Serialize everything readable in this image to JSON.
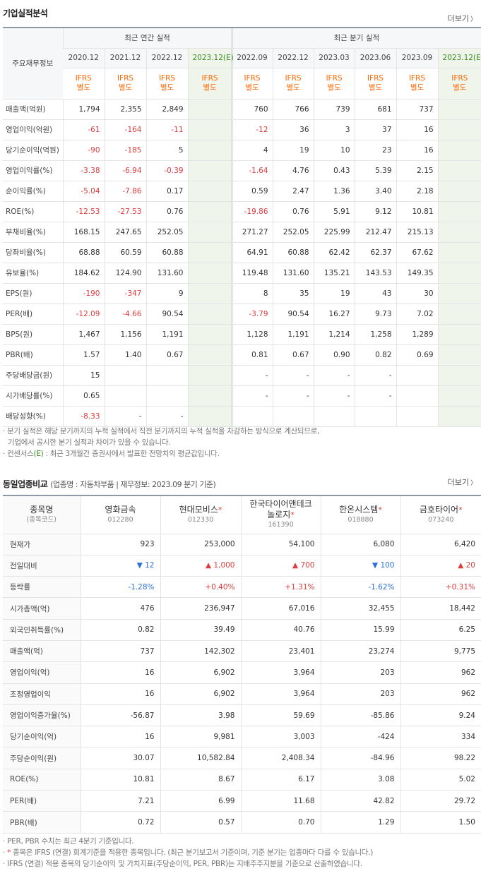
{
  "section1": {
    "title": "기업실적분석",
    "more_label": "더보기",
    "header": {
      "row_label": "주요재무정보",
      "annual_group": "최근 연간 실적",
      "quarter_group": "최근 분기 실적",
      "annual_periods": [
        "2020.12",
        "2021.12",
        "2022.12",
        "2023.12(E)"
      ],
      "quarter_periods": [
        "2022.09",
        "2022.12",
        "2023.03",
        "2023.06",
        "2023.09",
        "2023.12(E)"
      ],
      "ifrs_line1": "IFRS",
      "ifrs_line2": "별도"
    },
    "rows": [
      {
        "label": "매출액(억원)",
        "annual": [
          "1,794",
          "2,355",
          "2,849",
          ""
        ],
        "quarter": [
          "760",
          "766",
          "739",
          "681",
          "737",
          ""
        ]
      },
      {
        "label": "영업이익(억원)",
        "annual": [
          "-61",
          "-164",
          "-11",
          ""
        ],
        "quarter": [
          "-12",
          "36",
          "3",
          "37",
          "16",
          ""
        ]
      },
      {
        "label": "당기순이익(억원)",
        "annual": [
          "-90",
          "-185",
          "5",
          ""
        ],
        "quarter": [
          "4",
          "19",
          "10",
          "23",
          "16",
          ""
        ]
      },
      {
        "label": "영업이익률(%)",
        "annual": [
          "-3.38",
          "-6.94",
          "-0.39",
          ""
        ],
        "quarter": [
          "-1.64",
          "4.76",
          "0.43",
          "5.39",
          "2.15",
          ""
        ]
      },
      {
        "label": "순이익률(%)",
        "annual": [
          "-5.04",
          "-7.86",
          "0.17",
          ""
        ],
        "quarter": [
          "0.59",
          "2.47",
          "1.36",
          "3.40",
          "2.18",
          ""
        ]
      },
      {
        "label": "ROE(%)",
        "annual": [
          "-12.53",
          "-27.53",
          "0.76",
          ""
        ],
        "quarter": [
          "-19.86",
          "0.76",
          "5.91",
          "9.12",
          "10.81",
          ""
        ]
      },
      {
        "label": "부채비율(%)",
        "annual": [
          "168.15",
          "247.65",
          "252.05",
          ""
        ],
        "quarter": [
          "271.27",
          "252.05",
          "225.99",
          "212.47",
          "215.13",
          ""
        ]
      },
      {
        "label": "당좌비율(%)",
        "annual": [
          "68.88",
          "60.59",
          "60.88",
          ""
        ],
        "quarter": [
          "64.91",
          "60.88",
          "62.42",
          "62.37",
          "67.62",
          ""
        ]
      },
      {
        "label": "유보율(%)",
        "annual": [
          "184.62",
          "124.90",
          "131.60",
          ""
        ],
        "quarter": [
          "119.48",
          "131.60",
          "135.21",
          "143.53",
          "149.35",
          ""
        ]
      },
      {
        "label": "EPS(원)",
        "annual": [
          "-190",
          "-347",
          "9",
          ""
        ],
        "quarter": [
          "8",
          "35",
          "19",
          "43",
          "30",
          ""
        ]
      },
      {
        "label": "PER(배)",
        "annual": [
          "-12.09",
          "-4.66",
          "90.54",
          ""
        ],
        "quarter": [
          "-3.79",
          "90.54",
          "16.27",
          "9.73",
          "7.02",
          ""
        ]
      },
      {
        "label": "BPS(원)",
        "annual": [
          "1,467",
          "1,156",
          "1,191",
          ""
        ],
        "quarter": [
          "1,128",
          "1,191",
          "1,214",
          "1,258",
          "1,289",
          ""
        ]
      },
      {
        "label": "PBR(배)",
        "annual": [
          "1.57",
          "1.40",
          "0.67",
          ""
        ],
        "quarter": [
          "0.81",
          "0.67",
          "0.90",
          "0.82",
          "0.69",
          ""
        ]
      },
      {
        "label": "주당배당금(원)",
        "annual": [
          "15",
          "",
          "",
          ""
        ],
        "quarter": [
          "-",
          "-",
          "-",
          "-",
          "",
          ""
        ]
      },
      {
        "label": "시가배당률(%)",
        "annual": [
          "0.65",
          "",
          "",
          ""
        ],
        "quarter": [
          "-",
          "-",
          "-",
          "-",
          "",
          ""
        ]
      },
      {
        "label": "배당성향(%)",
        "annual": [
          "-8.33",
          "-",
          "-",
          ""
        ],
        "quarter": [
          "",
          "",
          "",
          "",
          "",
          ""
        ]
      }
    ],
    "notes": [
      "분기 실적은 해당 분기까지의 누적 실적에서 직전 분기까지의 누적 실적을 차감하는 방식으로 계산되므로,",
      "기업에서 공시한 분기 실적과 차이가 있을 수 있습니다.",
      "컨센서스(E) : 최근 3개월간 증권사에서 발표한 전망치의 평균값입니다."
    ]
  },
  "section2": {
    "title": "동일업종비교",
    "condition": "(업종명 : 자동차부품 | 재무정보: 2023.09 분기 기준)",
    "more_label": "더보기",
    "header_label_line1": "종목명",
    "header_label_line2": "(종목코드)",
    "companies": [
      {
        "name": "영화금속",
        "code": "012280",
        "star": false
      },
      {
        "name": "현대모비스",
        "code": "012330",
        "star": true
      },
      {
        "name": "한국타이어앤테크놀로지",
        "code": "161390",
        "star": true
      },
      {
        "name": "한온시스템",
        "code": "018880",
        "star": true
      },
      {
        "name": "금호타이어",
        "code": "073240",
        "star": true
      }
    ],
    "star_symbol": "*",
    "rows": [
      {
        "label": "현재가",
        "values": [
          "923",
          "253,000",
          "54,100",
          "6,080",
          "6,420"
        ]
      },
      {
        "label": "전일대비",
        "values": [
          "▼ 12",
          "▲ 1,000",
          "▲ 700",
          "▼ 100",
          "▲ 20"
        ],
        "dirs": [
          "down",
          "up",
          "up",
          "down",
          "up"
        ]
      },
      {
        "label": "등락률",
        "values": [
          "-1.28%",
          "+0.40%",
          "+1.31%",
          "-1.62%",
          "+0.31%"
        ],
        "dirs": [
          "down",
          "up",
          "up",
          "down",
          "up"
        ]
      },
      {
        "label": "시가총액(억)",
        "values": [
          "476",
          "236,947",
          "67,016",
          "32,455",
          "18,442"
        ]
      },
      {
        "label": "외국인취득률(%)",
        "values": [
          "0.82",
          "39.49",
          "40.76",
          "15.99",
          "6.25"
        ]
      },
      {
        "label": "매출액(억)",
        "values": [
          "737",
          "142,302",
          "23,401",
          "23,274",
          "9,775"
        ]
      },
      {
        "label": "영업이익(억)",
        "values": [
          "16",
          "6,902",
          "3,964",
          "203",
          "962"
        ]
      },
      {
        "label": "조정영업이익",
        "values": [
          "16",
          "6,902",
          "3,964",
          "203",
          "962"
        ]
      },
      {
        "label": "영업이익증가율(%)",
        "values": [
          "-56.87",
          "3.98",
          "59.69",
          "-85.86",
          "9.24"
        ]
      },
      {
        "label": "당기순이익(억)",
        "values": [
          "16",
          "9,981",
          "3,003",
          "-424",
          "334"
        ]
      },
      {
        "label": "주당순이익(원)",
        "values": [
          "30.07",
          "10,582.84",
          "2,408.34",
          "-84.96",
          "98.22"
        ]
      },
      {
        "label": "ROE(%)",
        "values": [
          "10.81",
          "8.67",
          "6.17",
          "3.08",
          "5.02"
        ]
      },
      {
        "label": "PER(배)",
        "values": [
          "7.21",
          "6.99",
          "11.68",
          "42.82",
          "29.72"
        ]
      },
      {
        "label": "PBR(배)",
        "values": [
          "0.72",
          "0.57",
          "0.70",
          "1.29",
          "1.50"
        ]
      }
    ],
    "notes": [
      "PER, PBR 수치는 최근 4분기 기준입니다.",
      "종목은 IFRS (연결) 회계기준을 적용한 종목입니다. (최근 분기보고서 기준이며, 기준 분기는 업종마다 다를 수 있습니다.)",
      "IFRS (연결) 적용 종목의 당기순이익 및 가치지표(주당순이익, PER, PBR)는 지배주주지분을 기준으로 산출하였습니다."
    ]
  }
}
